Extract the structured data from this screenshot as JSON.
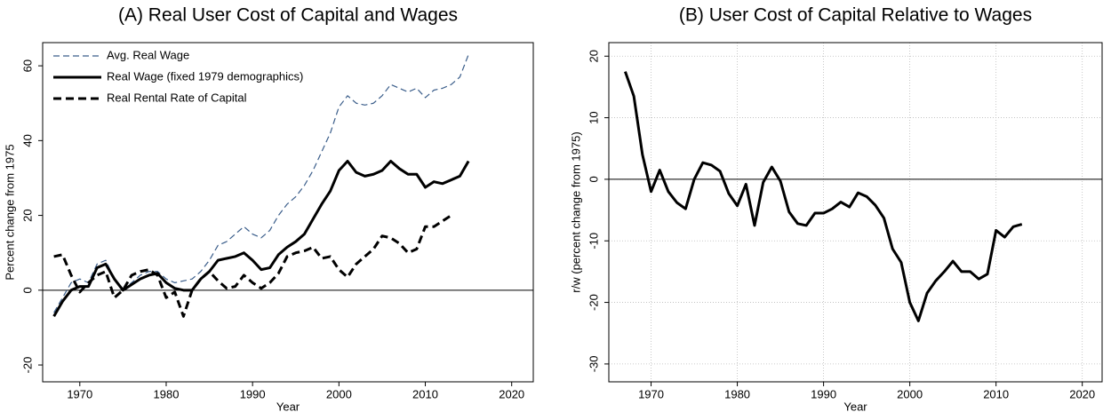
{
  "chart_data": [
    {
      "type": "line",
      "title": "(A) Real User Cost of Capital and Wages",
      "x_label": "Year",
      "y_label": "Percent change from 1975",
      "xlim": [
        1965.7,
        2022.5
      ],
      "xticks": [
        1970,
        1980,
        1990,
        2000,
        2010,
        2020
      ],
      "ylim": [
        -24.5,
        66.2
      ],
      "yticks": [
        -20,
        0,
        20,
        40,
        60
      ],
      "hline": 0,
      "grid": false,
      "legend": "top-left",
      "series": [
        {
          "name": "Avg. Real Wage",
          "color": "#3a5d8a",
          "style": "dashed",
          "width": 1.2,
          "x": [
            1967,
            1968,
            1969,
            1970,
            1971,
            1972,
            1973,
            1974,
            1975,
            1976,
            1977,
            1978,
            1979,
            1980,
            1981,
            1982,
            1983,
            1984,
            1985,
            1986,
            1987,
            1988,
            1989,
            1990,
            1991,
            1992,
            1993,
            1994,
            1995,
            1996,
            1997,
            1998,
            1999,
            2000,
            2001,
            2002,
            2003,
            2004,
            2005,
            2006,
            2007,
            2008,
            2009,
            2010,
            2011,
            2012,
            2013,
            2014,
            2015
          ],
          "values": [
            -6,
            -2,
            2,
            3,
            2,
            7,
            8,
            3,
            0,
            2,
            4,
            5,
            5,
            3,
            2,
            2.5,
            3,
            5,
            8,
            12,
            13,
            15,
            17,
            15,
            14,
            16,
            20,
            23,
            25,
            28,
            32,
            37,
            42,
            49,
            52,
            50,
            49.5,
            50,
            52,
            55,
            54,
            53,
            54,
            51.5,
            53.5,
            54,
            55,
            57,
            63
          ]
        },
        {
          "name": "Real Wage (fixed 1979 demographics)",
          "color": "#000000",
          "style": "solid",
          "width": 3,
          "x": [
            1967,
            1968,
            1969,
            1970,
            1971,
            1972,
            1973,
            1974,
            1975,
            1976,
            1977,
            1978,
            1979,
            1980,
            1981,
            1982,
            1983,
            1984,
            1985,
            1986,
            1987,
            1988,
            1989,
            1990,
            1991,
            1992,
            1993,
            1994,
            1995,
            1996,
            1997,
            1998,
            1999,
            2000,
            2001,
            2002,
            2003,
            2004,
            2005,
            2006,
            2007,
            2008,
            2009,
            2010,
            2011,
            2012,
            2013,
            2014,
            2015
          ],
          "values": [
            -7,
            -3,
            0,
            1,
            1,
            6,
            7,
            3,
            0,
            1.5,
            3,
            4,
            4.5,
            2,
            0.5,
            0,
            0,
            3,
            5,
            8,
            8.5,
            9,
            10,
            8,
            5.5,
            6,
            9.5,
            11.5,
            13,
            15,
            19,
            23,
            26.5,
            32,
            34.5,
            31.5,
            30.5,
            31,
            32,
            34.5,
            32.5,
            31,
            31,
            27.5,
            29,
            28.5,
            29.5,
            30.5,
            34.5
          ]
        },
        {
          "name": "Real Rental Rate of Capital",
          "color": "#000000",
          "style": "dashed",
          "width": 3,
          "x": [
            1967,
            1968,
            1969,
            1970,
            1971,
            1972,
            1973,
            1974,
            1975,
            1976,
            1977,
            1978,
            1979,
            1980,
            1981,
            1982,
            1983,
            1984,
            1985,
            1986,
            1987,
            1988,
            1989,
            1990,
            1991,
            1992,
            1993,
            1994,
            1995,
            1996,
            1997,
            1998,
            1999,
            2000,
            2001,
            2002,
            2003,
            2004,
            2005,
            2006,
            2007,
            2008,
            2009,
            2010,
            2011,
            2012,
            2013
          ],
          "values": [
            9,
            9.5,
            4,
            -0.5,
            2,
            4,
            5,
            -2,
            0,
            4,
            5,
            5.5,
            4,
            -2,
            -0.5,
            -7,
            0,
            3,
            5,
            2.5,
            0.5,
            1,
            4,
            2,
            0.5,
            2,
            4.5,
            9,
            10,
            10.5,
            11.5,
            8.5,
            9,
            5.5,
            3.5,
            7,
            9,
            11,
            14.5,
            14,
            12.5,
            10,
            11,
            17,
            17,
            18.5,
            20
          ]
        }
      ]
    },
    {
      "type": "line",
      "title": "(B) User Cost of Capital Relative to Wages",
      "x_label": "Year",
      "y_label": "r/w (percent change from 1975)",
      "xlim": [
        1965.1,
        2022.3
      ],
      "xticks": [
        1970,
        1980,
        1990,
        2000,
        2010,
        2020
      ],
      "ylim": [
        -32.9,
        22.2
      ],
      "yticks": [
        -30,
        -20,
        -10,
        0,
        10,
        20
      ],
      "hline": 0,
      "grid": true,
      "series": [
        {
          "color": "#000000",
          "style": "solid",
          "width": 3,
          "x": [
            1967,
            1968,
            1969,
            1970,
            1971,
            1972,
            1973,
            1974,
            1975,
            1976,
            1977,
            1978,
            1979,
            1980,
            1981,
            1982,
            1983,
            1984,
            1985,
            1986,
            1987,
            1988,
            1989,
            1990,
            1991,
            1992,
            1993,
            1994,
            1995,
            1996,
            1997,
            1998,
            1999,
            2000,
            2001,
            2002,
            2003,
            2004,
            2005,
            2006,
            2007,
            2008,
            2009,
            2010,
            2011,
            2012,
            2013
          ],
          "values": [
            17.5,
            13.5,
            4,
            -2,
            1.5,
            -2,
            -3.8,
            -4.8,
            0,
            2.7,
            2.3,
            1.3,
            -2.3,
            -4.3,
            -0.8,
            -7.5,
            -0.5,
            2,
            -0.3,
            -5.3,
            -7.2,
            -7.5,
            -5.5,
            -5.5,
            -4.8,
            -3.7,
            -4.5,
            -2.2,
            -2.8,
            -4.2,
            -6.3,
            -11.3,
            -13.5,
            -20,
            -23,
            -18.5,
            -16.5,
            -15,
            -13.3,
            -15,
            -15,
            -16.2,
            -15.4,
            -8.3,
            -9.4,
            -7.7,
            -7.3
          ]
        }
      ]
    }
  ]
}
